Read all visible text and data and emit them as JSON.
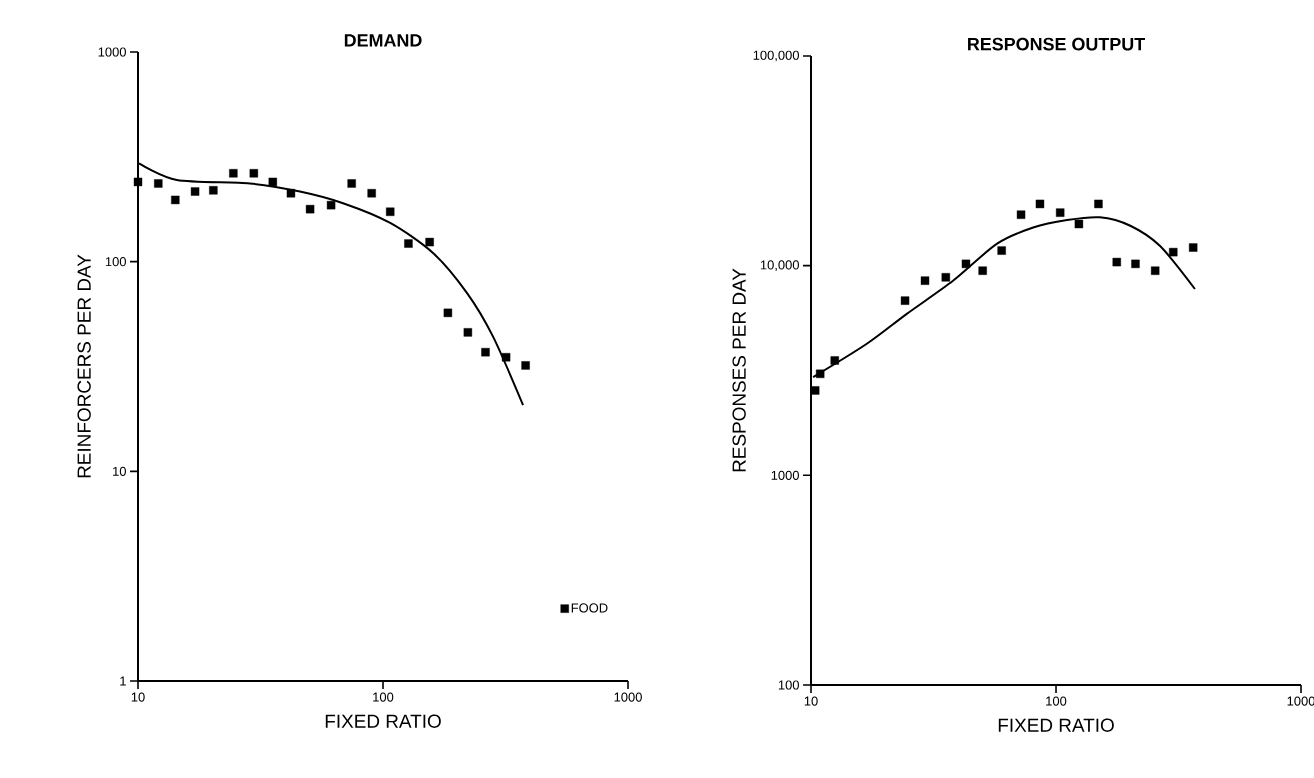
{
  "chart_data": [
    {
      "type": "scatter",
      "title": "DEMAND",
      "xlabel": "FIXED RATIO",
      "ylabel": "REINFORCERS  PER DAY",
      "log": "xy",
      "xlim": [
        10,
        1000
      ],
      "ylim": [
        1,
        1000
      ],
      "xticks": [
        10,
        100,
        1000
      ],
      "yticks": [
        1,
        10,
        100,
        1000
      ],
      "legend": "bottom right",
      "series": [
        {
          "name": "FOOD",
          "marker": "square",
          "color": "#000000",
          "x": [
            10,
            12.1,
            14.2,
            17.1,
            20.3,
            24.5,
            29.7,
            35.5,
            42.1,
            50.4,
            61.4,
            74.5,
            89.9,
            107,
            127,
            155,
            184,
            222,
            262,
            318,
            382
          ],
          "values": [
            240,
            236,
            197,
            216,
            219,
            264,
            264,
            240,
            212,
            178,
            186,
            236,
            212,
            173,
            122,
            124,
            57,
            46,
            37,
            35,
            32
          ]
        },
        {
          "type": "line",
          "marker": "none",
          "line_style": "solid",
          "color": "#000000",
          "x": [
            10.1,
            14.4,
            28.6,
            45.8,
            68.7,
            107,
            160,
            220,
            281,
            373
          ],
          "values": [
            294,
            245,
            236,
            216,
            190,
            153,
            110,
            71,
            44,
            20.7
          ]
        }
      ]
    },
    {
      "type": "scatter",
      "title": "RESPONSE OUTPUT",
      "xlabel": "FIXED RATIO",
      "ylabel": "RESPONSES PER DAY",
      "log": "xy",
      "xlim": [
        10,
        1000
      ],
      "ylim": [
        100,
        100000
      ],
      "xticks": [
        10,
        100,
        1000
      ],
      "yticks": [
        100,
        1000,
        {
          "value": 10000,
          "label": "10,000"
        },
        {
          "value": 100000,
          "label": "100,000"
        }
      ],
      "series": [
        {
          "marker": "square",
          "color": "#000000",
          "x": [
            10.4,
            10.9,
            12.5,
            24.2,
            29.2,
            35.5,
            42.9,
            50.2,
            60.0,
            72.0,
            86.0,
            104,
            124,
            149,
            177,
            211,
            254,
            301,
            363
          ],
          "values": [
            2540,
            3050,
            3530,
            6810,
            8480,
            8800,
            10200,
            9460,
            11800,
            17500,
            19700,
            17900,
            15800,
            19700,
            10400,
            10200,
            9460,
            11600,
            12200
          ]
        },
        {
          "type": "line",
          "marker": "none",
          "line_style": "solid",
          "color": "#000000",
          "x": [
            10.2,
            16.9,
            24.6,
            38.1,
            57.3,
            80.7,
            111,
            151,
            201,
            266,
            369
          ],
          "values": [
            2940,
            4240,
            5890,
            8490,
            12700,
            15200,
            16500,
            17000,
            15500,
            12400,
            7740
          ]
        }
      ]
    }
  ]
}
